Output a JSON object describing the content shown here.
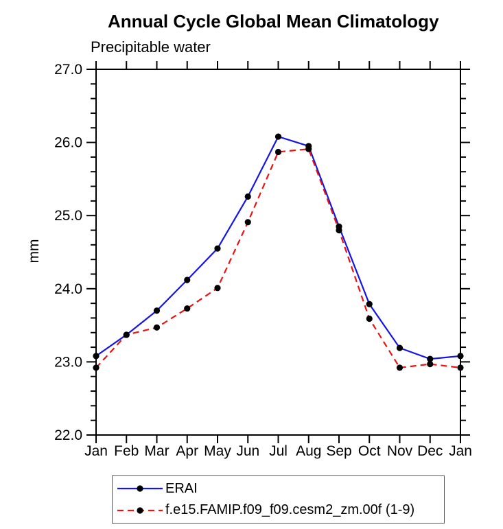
{
  "header": {
    "title": "Annual Cycle Global Mean Climatology",
    "subtitle": "Precipitable water"
  },
  "chart_data": {
    "type": "line",
    "title": "Annual Cycle Global Mean Climatology",
    "subtitle": "Precipitable water",
    "xlabel": "",
    "ylabel": "mm",
    "categories": [
      "Jan",
      "Feb",
      "Mar",
      "Apr",
      "May",
      "Jun",
      "Jul",
      "Aug",
      "Sep",
      "Oct",
      "Nov",
      "Dec",
      "Jan"
    ],
    "ylim": [
      22.0,
      27.0
    ],
    "ytick_major": 1.0,
    "ytick_minor": 0.2,
    "ytick_labels": [
      "22.0",
      "23.0",
      "24.0",
      "25.0",
      "26.0",
      "27.0"
    ],
    "grid": false,
    "legend_position": "bottom",
    "axis_color": "#000000",
    "marker_color": "#000000",
    "series": [
      {
        "name": "ERAI",
        "color": "#1414e6",
        "style": "solid",
        "marker": "black-dot",
        "values": [
          23.08,
          23.37,
          23.7,
          24.12,
          24.55,
          25.26,
          26.08,
          25.95,
          24.85,
          23.79,
          23.19,
          23.04,
          23.08
        ]
      },
      {
        "name": "f.e15.FAMIP.f09_f09.cesm2_zm.00f (1-9)",
        "color": "#e61414",
        "style": "dashed",
        "marker": "black-dot",
        "values": [
          22.92,
          23.37,
          23.47,
          23.73,
          24.01,
          24.91,
          25.87,
          25.91,
          24.8,
          23.59,
          22.92,
          22.97,
          22.92
        ]
      }
    ]
  }
}
